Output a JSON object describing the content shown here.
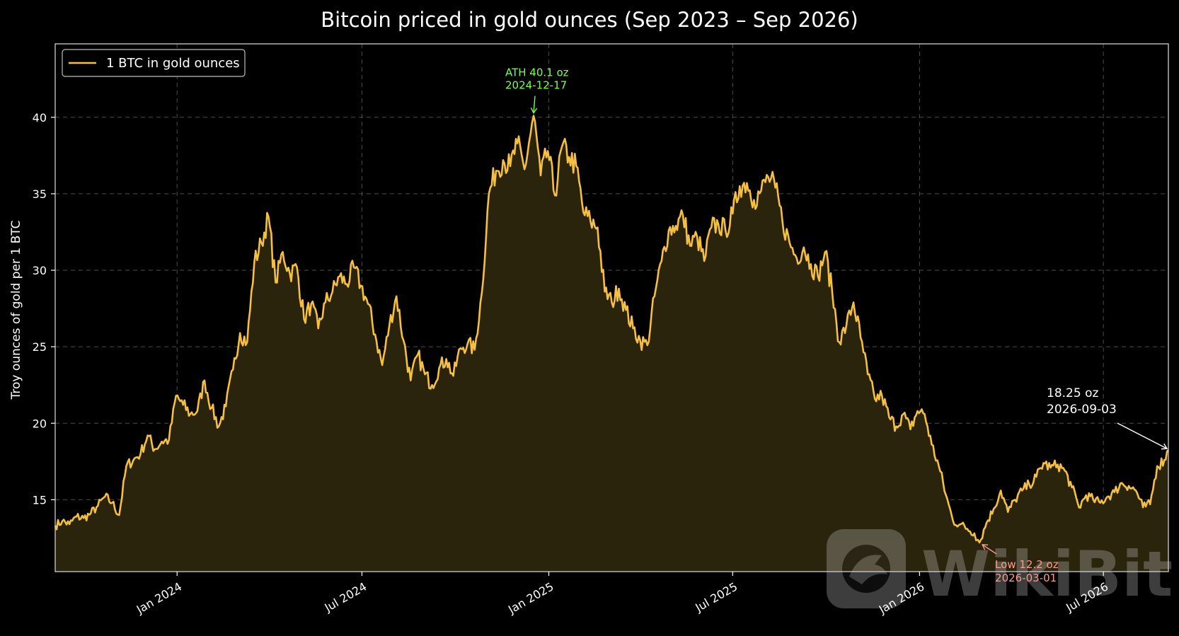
{
  "chart_data": {
    "type": "area",
    "title": "Bitcoin priced in gold ounces (Sep 2023 – Sep 2026)",
    "xlabel": "",
    "ylabel": "Troy ounces of gold per 1 BTC",
    "x_range": [
      "2023-09-03",
      "2026-09-03"
    ],
    "ylim": [
      10.3,
      44.8
    ],
    "y_ticks": [
      15,
      20,
      25,
      30,
      35,
      40
    ],
    "x_ticks": [
      {
        "date": "2024-01-01",
        "label": "Jan 2024"
      },
      {
        "date": "2024-07-01",
        "label": "Jul 2024"
      },
      {
        "date": "2025-01-01",
        "label": "Jan 2025"
      },
      {
        "date": "2025-07-01",
        "label": "Jul 2025"
      },
      {
        "date": "2026-01-01",
        "label": "Jan 2026"
      },
      {
        "date": "2026-07-01",
        "label": "Jul 2026"
      }
    ],
    "grid": true,
    "legend": {
      "position": "top-left",
      "entries": [
        "1 BTC in gold ounces"
      ]
    },
    "colors": {
      "line": "#f5bf42",
      "fill": "#2b240c",
      "ath": "#7dff4f",
      "low": "#ff9a90",
      "latest": "#ffffff",
      "background": "#000000"
    },
    "series": [
      {
        "name": "1 BTC in gold ounces",
        "points": [
          [
            "2023-09-03",
            13.3
          ],
          [
            "2023-09-10",
            13.6
          ],
          [
            "2023-09-17",
            13.4
          ],
          [
            "2023-09-24",
            13.9
          ],
          [
            "2023-10-01",
            13.8
          ],
          [
            "2023-10-08",
            14.1
          ],
          [
            "2023-10-15",
            14.6
          ],
          [
            "2023-10-22",
            15.2
          ],
          [
            "2023-10-29",
            14.8
          ],
          [
            "2023-11-05",
            14.0
          ],
          [
            "2023-11-12",
            17.2
          ],
          [
            "2023-11-19",
            17.6
          ],
          [
            "2023-11-26",
            18.0
          ],
          [
            "2023-12-03",
            19.2
          ],
          [
            "2023-12-10",
            18.3
          ],
          [
            "2023-12-17",
            18.8
          ],
          [
            "2023-12-24",
            18.9
          ],
          [
            "2023-12-31",
            21.8
          ],
          [
            "2024-01-07",
            21.2
          ],
          [
            "2024-01-14",
            20.6
          ],
          [
            "2024-01-21",
            20.8
          ],
          [
            "2024-01-28",
            22.8
          ],
          [
            "2024-02-04",
            21.0
          ],
          [
            "2024-02-11",
            19.8
          ],
          [
            "2024-02-18",
            21.1
          ],
          [
            "2024-02-25",
            23.5
          ],
          [
            "2024-03-03",
            25.9
          ],
          [
            "2024-03-10",
            25.3
          ],
          [
            "2024-03-17",
            30.5
          ],
          [
            "2024-03-24",
            31.8
          ],
          [
            "2024-03-31",
            33.5
          ],
          [
            "2024-04-07",
            29.2
          ],
          [
            "2024-04-14",
            31.2
          ],
          [
            "2024-04-21",
            29.8
          ],
          [
            "2024-04-28",
            30.2
          ],
          [
            "2024-05-05",
            26.8
          ],
          [
            "2024-05-12",
            27.8
          ],
          [
            "2024-05-19",
            26.2
          ],
          [
            "2024-05-26",
            27.9
          ],
          [
            "2024-06-02",
            28.6
          ],
          [
            "2024-06-09",
            29.6
          ],
          [
            "2024-06-16",
            29.1
          ],
          [
            "2024-06-23",
            30.2
          ],
          [
            "2024-06-30",
            29.0
          ],
          [
            "2024-07-07",
            27.8
          ],
          [
            "2024-07-14",
            25.8
          ],
          [
            "2024-07-21",
            23.8
          ],
          [
            "2024-07-28",
            26.4
          ],
          [
            "2024-08-04",
            28.3
          ],
          [
            "2024-08-11",
            25.4
          ],
          [
            "2024-08-18",
            22.8
          ],
          [
            "2024-08-25",
            24.5
          ],
          [
            "2024-09-01",
            23.2
          ],
          [
            "2024-09-08",
            22.5
          ],
          [
            "2024-09-15",
            23.6
          ],
          [
            "2024-09-22",
            24.2
          ],
          [
            "2024-09-29",
            23.1
          ],
          [
            "2024-10-06",
            24.9
          ],
          [
            "2024-10-13",
            25.2
          ],
          [
            "2024-10-20",
            24.8
          ],
          [
            "2024-10-27",
            28.5
          ],
          [
            "2024-11-03",
            35.0
          ],
          [
            "2024-11-10",
            36.5
          ],
          [
            "2024-11-17",
            37.2
          ],
          [
            "2024-11-24",
            36.8
          ],
          [
            "2024-12-01",
            38.3
          ],
          [
            "2024-12-08",
            36.6
          ],
          [
            "2024-12-17",
            40.1
          ],
          [
            "2024-12-24",
            36.2
          ],
          [
            "2024-12-31",
            37.8
          ],
          [
            "2025-01-07",
            34.9
          ],
          [
            "2025-01-14",
            38.1
          ],
          [
            "2025-01-21",
            37.4
          ],
          [
            "2025-01-28",
            36.8
          ],
          [
            "2025-02-04",
            33.8
          ],
          [
            "2025-02-11",
            33.2
          ],
          [
            "2025-02-18",
            32.8
          ],
          [
            "2025-02-25",
            28.6
          ],
          [
            "2025-03-04",
            27.9
          ],
          [
            "2025-03-11",
            28.8
          ],
          [
            "2025-03-18",
            27.4
          ],
          [
            "2025-03-25",
            26.2
          ],
          [
            "2025-04-01",
            25.4
          ],
          [
            "2025-04-08",
            25.1
          ],
          [
            "2025-04-15",
            28.3
          ],
          [
            "2025-04-22",
            30.6
          ],
          [
            "2025-04-29",
            32.6
          ],
          [
            "2025-05-06",
            32.9
          ],
          [
            "2025-05-13",
            33.6
          ],
          [
            "2025-05-20",
            31.6
          ],
          [
            "2025-05-27",
            32.2
          ],
          [
            "2025-06-03",
            30.6
          ],
          [
            "2025-06-10",
            32.8
          ],
          [
            "2025-06-17",
            33.0
          ],
          [
            "2025-06-24",
            32.6
          ],
          [
            "2025-07-01",
            33.7
          ],
          [
            "2025-07-08",
            35.5
          ],
          [
            "2025-07-15",
            35.7
          ],
          [
            "2025-07-22",
            34.6
          ],
          [
            "2025-07-29",
            35.2
          ],
          [
            "2025-08-05",
            36.1
          ],
          [
            "2025-08-12",
            35.4
          ],
          [
            "2025-08-19",
            33.2
          ],
          [
            "2025-08-26",
            31.8
          ],
          [
            "2025-09-02",
            30.8
          ],
          [
            "2025-09-09",
            31.5
          ],
          [
            "2025-09-16",
            30.4
          ],
          [
            "2025-09-23",
            29.6
          ],
          [
            "2025-09-30",
            31.2
          ],
          [
            "2025-10-07",
            28.6
          ],
          [
            "2025-10-14",
            25.3
          ],
          [
            "2025-10-21",
            26.4
          ],
          [
            "2025-10-28",
            27.9
          ],
          [
            "2025-11-04",
            25.6
          ],
          [
            "2025-11-11",
            23.2
          ],
          [
            "2025-11-18",
            21.6
          ],
          [
            "2025-11-25",
            21.8
          ],
          [
            "2025-12-02",
            20.4
          ],
          [
            "2025-12-09",
            19.8
          ],
          [
            "2025-12-16",
            20.6
          ],
          [
            "2025-12-23",
            19.6
          ],
          [
            "2025-12-30",
            20.8
          ],
          [
            "2026-01-06",
            20.6
          ],
          [
            "2026-01-13",
            18.6
          ],
          [
            "2026-01-20",
            17.2
          ],
          [
            "2026-01-27",
            15.3
          ],
          [
            "2026-02-03",
            13.6
          ],
          [
            "2026-02-10",
            13.4
          ],
          [
            "2026-02-17",
            13.1
          ],
          [
            "2026-02-24",
            12.8
          ],
          [
            "2026-03-01",
            12.2
          ],
          [
            "2026-03-08",
            13.5
          ],
          [
            "2026-03-15",
            14.4
          ],
          [
            "2026-03-22",
            15.6
          ],
          [
            "2026-03-29",
            14.2
          ],
          [
            "2026-04-05",
            15.0
          ],
          [
            "2026-04-12",
            15.6
          ],
          [
            "2026-04-19",
            16.0
          ],
          [
            "2026-04-26",
            16.5
          ],
          [
            "2026-05-03",
            17.4
          ],
          [
            "2026-05-10",
            17.1
          ],
          [
            "2026-05-17",
            17.3
          ],
          [
            "2026-05-24",
            16.9
          ],
          [
            "2026-05-31",
            15.8
          ],
          [
            "2026-06-07",
            14.5
          ],
          [
            "2026-06-14",
            15.3
          ],
          [
            "2026-06-21",
            15.0
          ],
          [
            "2026-06-28",
            14.8
          ],
          [
            "2026-07-05",
            15.2
          ],
          [
            "2026-07-12",
            15.5
          ],
          [
            "2026-07-19",
            16.1
          ],
          [
            "2026-07-26",
            15.9
          ],
          [
            "2026-08-02",
            15.6
          ],
          [
            "2026-08-09",
            14.5
          ],
          [
            "2026-08-16",
            14.7
          ],
          [
            "2026-08-23",
            17.2
          ],
          [
            "2026-08-30",
            17.6
          ],
          [
            "2026-09-03",
            18.25
          ]
        ]
      }
    ],
    "annotations": {
      "ath": {
        "line1": "ATH 40.1 oz",
        "line2": "2024-12-17",
        "date": "2024-12-17",
        "value": 40.1
      },
      "low": {
        "line1": "Low 12.2 oz",
        "line2": "2026-03-01",
        "date": "2026-03-01",
        "value": 12.2
      },
      "latest": {
        "line1": "18.25 oz",
        "line2": "2026-09-03",
        "date": "2026-09-03",
        "value": 18.25
      }
    },
    "watermark": "WikiBit"
  }
}
